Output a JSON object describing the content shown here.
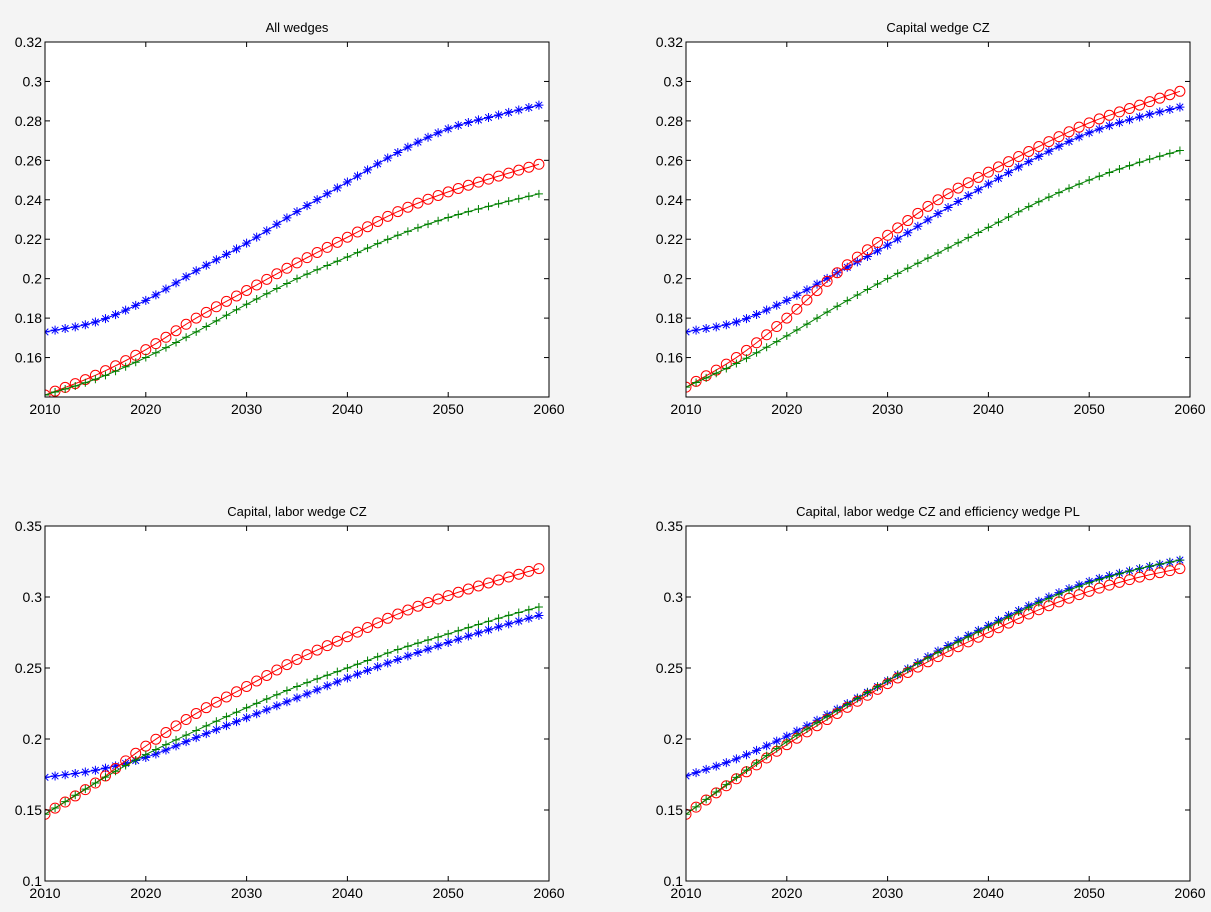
{
  "figure": {
    "background": "#f4f4f4"
  },
  "series_styles": [
    {
      "color": "#0000ff",
      "marker": "asterisk"
    },
    {
      "color": "#ff0000",
      "marker": "circle"
    },
    {
      "color": "#008000",
      "marker": "plus"
    }
  ],
  "chart_data": [
    {
      "type": "line",
      "title": "All wedges",
      "xlabel": "",
      "ylabel": "",
      "xlim": [
        2010,
        2060
      ],
      "ylim": [
        0.14,
        0.32
      ],
      "xticks": [
        2010,
        2020,
        2030,
        2040,
        2050,
        2060
      ],
      "yticks": [
        0.16,
        0.18,
        0.2,
        0.22,
        0.24,
        0.26,
        0.28,
        0.3,
        0.32
      ],
      "ytick_labels": [
        "0.16",
        "0.18",
        "0.2",
        "0.22",
        "0.24",
        "0.26",
        "0.28",
        "0.3",
        "0.32"
      ],
      "grid": false,
      "legend": "none",
      "x_range": [
        2010,
        2059
      ],
      "series": [
        {
          "color": "#0000ff",
          "marker": "asterisk",
          "points": [
            [
              2010,
              0.173
            ],
            [
              2015,
              0.178
            ],
            [
              2020,
              0.189
            ],
            [
              2025,
              0.204
            ],
            [
              2030,
              0.218
            ],
            [
              2035,
              0.234
            ],
            [
              2040,
              0.249
            ],
            [
              2045,
              0.264
            ],
            [
              2050,
              0.276
            ],
            [
              2055,
              0.283
            ],
            [
              2059,
              0.288
            ]
          ]
        },
        {
          "color": "#ff0000",
          "marker": "circle",
          "points": [
            [
              2010,
              0.141
            ],
            [
              2015,
              0.151
            ],
            [
              2020,
              0.164
            ],
            [
              2025,
              0.18
            ],
            [
              2030,
              0.194
            ],
            [
              2035,
              0.208
            ],
            [
              2040,
              0.221
            ],
            [
              2045,
              0.234
            ],
            [
              2050,
              0.244
            ],
            [
              2055,
              0.252
            ],
            [
              2059,
              0.258
            ]
          ]
        },
        {
          "color": "#008000",
          "marker": "plus",
          "points": [
            [
              2010,
              0.141
            ],
            [
              2015,
              0.149
            ],
            [
              2020,
              0.16
            ],
            [
              2025,
              0.173
            ],
            [
              2030,
              0.187
            ],
            [
              2035,
              0.2
            ],
            [
              2040,
              0.211
            ],
            [
              2045,
              0.222
            ],
            [
              2050,
              0.231
            ],
            [
              2055,
              0.238
            ],
            [
              2059,
              0.243
            ]
          ]
        }
      ]
    },
    {
      "type": "line",
      "title": "Capital wedge CZ",
      "xlabel": "",
      "ylabel": "",
      "xlim": [
        2010,
        2060
      ],
      "ylim": [
        0.14,
        0.32
      ],
      "xticks": [
        2010,
        2020,
        2030,
        2040,
        2050,
        2060
      ],
      "yticks": [
        0.16,
        0.18,
        0.2,
        0.22,
        0.24,
        0.26,
        0.28,
        0.3,
        0.32
      ],
      "ytick_labels": [
        "0.16",
        "0.18",
        "0.2",
        "0.22",
        "0.24",
        "0.26",
        "0.28",
        "0.3",
        "0.32"
      ],
      "grid": false,
      "legend": "none",
      "x_range": [
        2010,
        2059
      ],
      "series": [
        {
          "color": "#0000ff",
          "marker": "asterisk",
          "points": [
            [
              2010,
              0.173
            ],
            [
              2015,
              0.178
            ],
            [
              2020,
              0.189
            ],
            [
              2025,
              0.203
            ],
            [
              2030,
              0.217
            ],
            [
              2035,
              0.233
            ],
            [
              2040,
              0.248
            ],
            [
              2045,
              0.262
            ],
            [
              2050,
              0.274
            ],
            [
              2055,
              0.282
            ],
            [
              2059,
              0.287
            ]
          ]
        },
        {
          "color": "#ff0000",
          "marker": "circle",
          "points": [
            [
              2010,
              0.145
            ],
            [
              2015,
              0.16
            ],
            [
              2020,
              0.18
            ],
            [
              2025,
              0.203
            ],
            [
              2030,
              0.222
            ],
            [
              2035,
              0.24
            ],
            [
              2040,
              0.254
            ],
            [
              2045,
              0.267
            ],
            [
              2050,
              0.279
            ],
            [
              2055,
              0.288
            ],
            [
              2059,
              0.295
            ]
          ]
        },
        {
          "color": "#008000",
          "marker": "plus",
          "points": [
            [
              2010,
              0.145
            ],
            [
              2015,
              0.157
            ],
            [
              2020,
              0.171
            ],
            [
              2025,
              0.186
            ],
            [
              2030,
              0.2
            ],
            [
              2035,
              0.213
            ],
            [
              2040,
              0.226
            ],
            [
              2045,
              0.239
            ],
            [
              2050,
              0.25
            ],
            [
              2055,
              0.259
            ],
            [
              2059,
              0.265
            ]
          ]
        }
      ]
    },
    {
      "type": "line",
      "title": "Capital, labor wedge CZ",
      "xlabel": "",
      "ylabel": "",
      "xlim": [
        2010,
        2060
      ],
      "ylim": [
        0.1,
        0.35
      ],
      "xticks": [
        2010,
        2020,
        2030,
        2040,
        2050,
        2060
      ],
      "yticks": [
        0.1,
        0.15,
        0.2,
        0.25,
        0.3,
        0.35
      ],
      "ytick_labels": [
        "0.1",
        "0.15",
        "0.2",
        "0.25",
        "0.3",
        "0.35"
      ],
      "grid": false,
      "legend": "none",
      "x_range": [
        2010,
        2059
      ],
      "series": [
        {
          "color": "#0000ff",
          "marker": "asterisk",
          "points": [
            [
              2010,
              0.173
            ],
            [
              2015,
              0.178
            ],
            [
              2020,
              0.187
            ],
            [
              2025,
              0.201
            ],
            [
              2030,
              0.215
            ],
            [
              2035,
              0.229
            ],
            [
              2040,
              0.243
            ],
            [
              2045,
              0.256
            ],
            [
              2050,
              0.268
            ],
            [
              2055,
              0.279
            ],
            [
              2059,
              0.287
            ]
          ]
        },
        {
          "color": "#ff0000",
          "marker": "circle",
          "points": [
            [
              2010,
              0.147
            ],
            [
              2015,
              0.169
            ],
            [
              2020,
              0.195
            ],
            [
              2025,
              0.218
            ],
            [
              2030,
              0.237
            ],
            [
              2035,
              0.256
            ],
            [
              2040,
              0.272
            ],
            [
              2045,
              0.288
            ],
            [
              2050,
              0.301
            ],
            [
              2055,
              0.312
            ],
            [
              2059,
              0.32
            ]
          ]
        },
        {
          "color": "#008000",
          "marker": "plus",
          "points": [
            [
              2010,
              0.147
            ],
            [
              2015,
              0.169
            ],
            [
              2020,
              0.189
            ],
            [
              2025,
              0.206
            ],
            [
              2030,
              0.222
            ],
            [
              2035,
              0.237
            ],
            [
              2040,
              0.25
            ],
            [
              2045,
              0.263
            ],
            [
              2050,
              0.274
            ],
            [
              2055,
              0.285
            ],
            [
              2059,
              0.293
            ]
          ]
        }
      ]
    },
    {
      "type": "line",
      "title": "Capital, labor wedge CZ and efficiency wedge PL",
      "xlabel": "",
      "ylabel": "",
      "xlim": [
        2010,
        2060
      ],
      "ylim": [
        0.1,
        0.35
      ],
      "xticks": [
        2010,
        2020,
        2030,
        2040,
        2050,
        2060
      ],
      "yticks": [
        0.1,
        0.15,
        0.2,
        0.25,
        0.3,
        0.35
      ],
      "ytick_labels": [
        "0.1",
        "0.15",
        "0.2",
        "0.25",
        "0.3",
        "0.35"
      ],
      "grid": false,
      "legend": "none",
      "x_range": [
        2010,
        2059
      ],
      "series": [
        {
          "color": "#0000ff",
          "marker": "asterisk",
          "points": [
            [
              2010,
              0.174
            ],
            [
              2015,
              0.186
            ],
            [
              2020,
              0.202
            ],
            [
              2025,
              0.221
            ],
            [
              2030,
              0.241
            ],
            [
              2035,
              0.262
            ],
            [
              2040,
              0.28
            ],
            [
              2045,
              0.297
            ],
            [
              2050,
              0.311
            ],
            [
              2055,
              0.32
            ],
            [
              2059,
              0.326
            ]
          ]
        },
        {
          "color": "#ff0000",
          "marker": "circle",
          "points": [
            [
              2010,
              0.147
            ],
            [
              2015,
              0.172
            ],
            [
              2020,
              0.196
            ],
            [
              2025,
              0.218
            ],
            [
              2030,
              0.239
            ],
            [
              2035,
              0.258
            ],
            [
              2040,
              0.275
            ],
            [
              2045,
              0.291
            ],
            [
              2050,
              0.304
            ],
            [
              2055,
              0.314
            ],
            [
              2059,
              0.32
            ]
          ]
        },
        {
          "color": "#008000",
          "marker": "plus",
          "points": [
            [
              2010,
              0.147
            ],
            [
              2015,
              0.173
            ],
            [
              2020,
              0.198
            ],
            [
              2025,
              0.22
            ],
            [
              2030,
              0.241
            ],
            [
              2035,
              0.261
            ],
            [
              2040,
              0.279
            ],
            [
              2045,
              0.296
            ],
            [
              2050,
              0.31
            ],
            [
              2055,
              0.32
            ],
            [
              2059,
              0.326
            ]
          ]
        }
      ]
    }
  ]
}
